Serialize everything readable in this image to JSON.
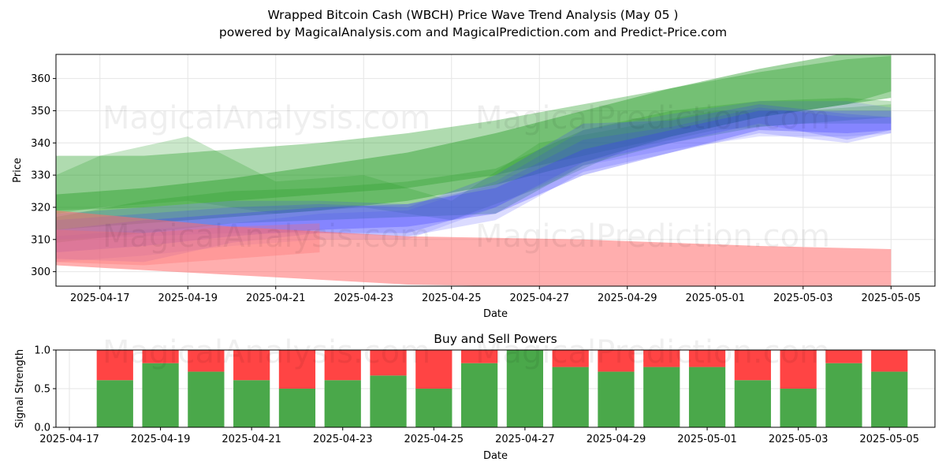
{
  "title": "Wrapped Bitcoin Cash (WBCH) Price Wave Trend Analysis (May 05 )",
  "subtitle": "powered by MagicalAnalysis.com and MagicalPrediction.com and Predict-Price.com",
  "watermarks": [
    "MagicalAnalysis.com",
    "MagicalPrediction.com"
  ],
  "colors": {
    "green": "#2ca02c",
    "blue": "#3a3aff",
    "red": "#ff6b6b",
    "buy": "#4aa84a",
    "sell": "#ff4444"
  },
  "chart_data": [
    {
      "type": "area",
      "title": "",
      "xlabel": "Date",
      "ylabel": "Price",
      "x_ticks": [
        "2025-04-17",
        "2025-04-19",
        "2025-04-21",
        "2025-04-23",
        "2025-04-25",
        "2025-04-27",
        "2025-04-29",
        "2025-05-01",
        "2025-05-03",
        "2025-05-05"
      ],
      "y_ticks": [
        300,
        310,
        320,
        330,
        340,
        350,
        360
      ],
      "xlim": [
        "2025-04-16",
        "2025-05-06"
      ],
      "ylim": [
        295.5,
        367.5
      ],
      "grid": true,
      "bands": [
        {
          "color": "green",
          "x": [
            "2025-04-16",
            "2025-04-18",
            "2025-04-20",
            "2025-04-22",
            "2025-04-24",
            "2025-04-26",
            "2025-04-28",
            "2025-04-30",
            "2025-05-02",
            "2025-05-04",
            "2025-05-05"
          ],
          "lower": [
            319,
            320,
            322,
            324,
            326,
            330,
            336,
            342,
            348,
            352,
            356
          ],
          "upper": [
            336,
            336,
            338,
            340,
            343,
            347,
            352,
            357,
            362,
            366,
            367
          ],
          "opacity": 0.38
        },
        {
          "color": "green",
          "x": [
            "2025-04-16",
            "2025-04-18",
            "2025-04-20",
            "2025-04-22",
            "2025-04-24",
            "2025-04-26",
            "2025-04-28",
            "2025-04-30",
            "2025-05-02",
            "2025-05-04",
            "2025-05-05"
          ],
          "lower": [
            313,
            315,
            317,
            319,
            322,
            327,
            334,
            342,
            348,
            352,
            354
          ],
          "upper": [
            324,
            326,
            329,
            333,
            337,
            343,
            350,
            357,
            363,
            368,
            368
          ],
          "opacity": 0.45
        },
        {
          "color": "green",
          "x": [
            "2025-04-16",
            "2025-04-17",
            "2025-04-19",
            "2025-04-21",
            "2025-04-23",
            "2025-04-25",
            "2025-04-27",
            "2025-04-29",
            "2025-05-01",
            "2025-05-03",
            "2025-05-05"
          ],
          "lower": [
            318,
            320,
            322,
            318,
            320,
            316,
            326,
            338,
            344,
            346,
            346
          ],
          "upper": [
            330,
            336,
            342,
            328,
            330,
            322,
            340,
            345,
            350,
            350,
            352
          ],
          "opacity": 0.25
        },
        {
          "color": "green",
          "x": [
            "2025-04-16",
            "2025-04-18",
            "2025-04-20",
            "2025-04-22",
            "2025-04-24",
            "2025-04-26",
            "2025-04-28",
            "2025-04-30",
            "2025-05-02",
            "2025-05-04",
            "2025-05-05"
          ],
          "lower": [
            309,
            312,
            315,
            316,
            317,
            318,
            333,
            340,
            345,
            347,
            348
          ],
          "upper": [
            317,
            322,
            325,
            326,
            328,
            332,
            344,
            350,
            353,
            354,
            353
          ],
          "opacity": 0.3
        },
        {
          "color": "blue",
          "x": [
            "2025-04-16",
            "2025-04-18",
            "2025-04-20",
            "2025-04-22",
            "2025-04-24",
            "2025-04-26",
            "2025-04-28",
            "2025-04-30",
            "2025-05-02",
            "2025-05-04",
            "2025-05-05"
          ],
          "lower": [
            306,
            308,
            311,
            313,
            314,
            318,
            330,
            337,
            344,
            343,
            344
          ],
          "upper": [
            313,
            316,
            318,
            320,
            321,
            326,
            338,
            344,
            350,
            350,
            350
          ],
          "opacity": 0.3
        },
        {
          "color": "blue",
          "x": [
            "2025-04-16",
            "2025-04-18",
            "2025-04-20",
            "2025-04-22",
            "2025-04-24",
            "2025-04-26",
            "2025-04-28",
            "2025-04-30",
            "2025-05-02",
            "2025-05-04",
            "2025-05-05"
          ],
          "lower": [
            304,
            303,
            309,
            312,
            312,
            320,
            334,
            340,
            346,
            341,
            344
          ],
          "upper": [
            316,
            318,
            320,
            321,
            320,
            330,
            346,
            347,
            352,
            349,
            348
          ],
          "opacity": 0.22
        },
        {
          "color": "blue",
          "x": [
            "2025-04-16",
            "2025-04-18",
            "2025-04-20",
            "2025-04-22",
            "2025-04-24",
            "2025-04-26",
            "2025-04-28",
            "2025-04-30",
            "2025-05-02",
            "2025-05-04",
            "2025-05-05"
          ],
          "lower": [
            310,
            311,
            312,
            312,
            311,
            316,
            331,
            337,
            343,
            340,
            343
          ],
          "upper": [
            318,
            320,
            322,
            322,
            321,
            327,
            341,
            345,
            351,
            348,
            348
          ],
          "opacity": 0.18
        },
        {
          "color": "blue",
          "x": [
            "2025-04-16",
            "2025-04-18",
            "2025-04-20",
            "2025-04-22",
            "2025-04-24",
            "2025-04-26",
            "2025-04-28",
            "2025-04-30",
            "2025-05-02",
            "2025-05-04",
            "2025-05-05"
          ],
          "lower": [
            303,
            305,
            308,
            310,
            310,
            320,
            333,
            338,
            342,
            342,
            343
          ],
          "upper": [
            311,
            313,
            315,
            318,
            319,
            328,
            344,
            349,
            353,
            353,
            351
          ],
          "opacity": 0.15
        },
        {
          "color": "red",
          "x": [
            "2025-04-16",
            "2025-04-20",
            "2025-04-24",
            "2025-04-28",
            "2025-05-02",
            "2025-05-05"
          ],
          "lower": [
            302,
            299,
            296,
            295,
            295,
            295
          ],
          "upper": [
            319,
            314,
            311,
            310,
            308,
            307
          ],
          "opacity": 0.55
        },
        {
          "color": "red",
          "x": [
            "2025-04-16",
            "2025-04-18",
            "2025-04-20",
            "2025-04-22"
          ],
          "lower": [
            303,
            302,
            304,
            306
          ],
          "upper": [
            313,
            312,
            314,
            315
          ],
          "opacity": 0.3
        }
      ]
    },
    {
      "type": "bar",
      "title": "Buy and Sell Powers",
      "xlabel": "Date",
      "ylabel": "Signal Strength",
      "x_ticks": [
        "2025-04-17",
        "2025-04-19",
        "2025-04-21",
        "2025-04-23",
        "2025-04-25",
        "2025-04-27",
        "2025-04-29",
        "2025-05-01",
        "2025-05-03",
        "2025-05-05"
      ],
      "y_ticks": [
        0.0,
        0.5,
        1.0
      ],
      "ylim": [
        0,
        1
      ],
      "xlim": [
        "2025-04-17",
        "2025-05-06"
      ],
      "categories": [
        "2025-04-18",
        "2025-04-19",
        "2025-04-20",
        "2025-04-21",
        "2025-04-22",
        "2025-04-23",
        "2025-04-24",
        "2025-04-25",
        "2025-04-26",
        "2025-04-27",
        "2025-04-28",
        "2025-04-29",
        "2025-04-30",
        "2025-05-01",
        "2025-05-02",
        "2025-05-03",
        "2025-05-04",
        "2025-05-05"
      ],
      "series": [
        {
          "name": "buy",
          "values": [
            0.61,
            0.83,
            0.72,
            0.61,
            0.5,
            0.61,
            0.67,
            0.5,
            0.83,
            1.0,
            0.78,
            0.72,
            0.78,
            0.78,
            0.61,
            0.5,
            0.83,
            0.72
          ]
        },
        {
          "name": "sell",
          "values": [
            0.39,
            0.17,
            0.28,
            0.39,
            0.5,
            0.39,
            0.33,
            0.5,
            0.17,
            0.0,
            0.22,
            0.28,
            0.22,
            0.22,
            0.39,
            0.5,
            0.17,
            0.28
          ]
        }
      ],
      "grid": true
    }
  ]
}
